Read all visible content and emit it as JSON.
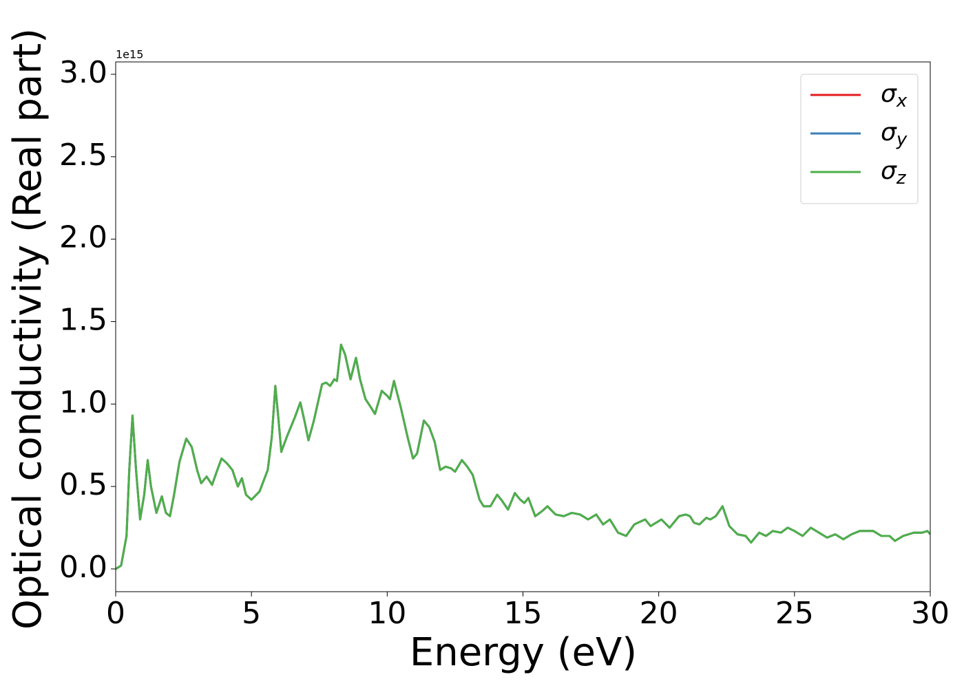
{
  "chart_data": {
    "type": "line",
    "xlabel": "Energy (eV)",
    "ylabel": "Optical conductivity (Real part)",
    "y_offset_label": "1e15",
    "x": [
      0,
      0.2,
      0.4,
      0.5,
      0.62,
      0.75,
      0.9,
      1.05,
      1.18,
      1.3,
      1.5,
      1.7,
      1.85,
      2.0,
      2.15,
      2.35,
      2.6,
      2.8,
      3.0,
      3.15,
      3.35,
      3.55,
      3.7,
      3.9,
      4.1,
      4.3,
      4.5,
      4.65,
      4.8,
      5.0,
      5.3,
      5.6,
      5.75,
      5.88,
      6.0,
      6.1,
      6.3,
      6.6,
      6.8,
      6.95,
      7.1,
      7.3,
      7.6,
      7.75,
      7.9,
      8.05,
      8.15,
      8.3,
      8.45,
      8.65,
      8.85,
      9.0,
      9.2,
      9.4,
      9.55,
      9.8,
      10.0,
      10.1,
      10.25,
      10.5,
      10.75,
      10.95,
      11.1,
      11.35,
      11.55,
      11.75,
      11.95,
      12.15,
      12.35,
      12.5,
      12.75,
      12.95,
      13.15,
      13.4,
      13.55,
      13.8,
      14.05,
      14.2,
      14.45,
      14.7,
      14.9,
      15.05,
      15.2,
      15.45,
      15.7,
      15.9,
      16.2,
      16.5,
      16.8,
      17.1,
      17.4,
      17.7,
      17.95,
      18.2,
      18.5,
      18.8,
      19.1,
      19.5,
      19.7,
      20.1,
      20.4,
      20.75,
      21.0,
      21.15,
      21.3,
      21.5,
      21.75,
      21.9,
      22.1,
      22.35,
      22.6,
      22.9,
      23.2,
      23.4,
      23.7,
      23.95,
      24.2,
      24.5,
      24.75,
      25.0,
      25.3,
      25.6,
      25.9,
      26.2,
      26.5,
      26.8,
      27.1,
      27.4,
      27.7,
      27.9,
      28.2,
      28.5,
      28.7,
      29.0,
      29.4,
      29.7,
      29.9,
      30
    ],
    "series": [
      {
        "name": "σx",
        "color": "#e41a1c",
        "values": [
          0,
          0.02,
          0.2,
          0.6,
          0.93,
          0.6,
          0.3,
          0.45,
          0.66,
          0.5,
          0.34,
          0.44,
          0.34,
          0.32,
          0.45,
          0.65,
          0.79,
          0.74,
          0.6,
          0.52,
          0.56,
          0.51,
          0.58,
          0.67,
          0.64,
          0.6,
          0.5,
          0.55,
          0.45,
          0.42,
          0.47,
          0.6,
          0.8,
          1.11,
          0.9,
          0.71,
          0.8,
          0.92,
          1.01,
          0.9,
          0.78,
          0.9,
          1.12,
          1.13,
          1.11,
          1.15,
          1.14,
          1.36,
          1.3,
          1.15,
          1.28,
          1.15,
          1.03,
          0.98,
          0.94,
          1.08,
          1.05,
          1.03,
          1.14,
          0.98,
          0.8,
          0.67,
          0.7,
          0.9,
          0.86,
          0.77,
          0.6,
          0.62,
          0.61,
          0.59,
          0.66,
          0.62,
          0.57,
          0.42,
          0.38,
          0.38,
          0.45,
          0.42,
          0.36,
          0.46,
          0.42,
          0.4,
          0.43,
          0.32,
          0.35,
          0.38,
          0.33,
          0.32,
          0.34,
          0.33,
          0.3,
          0.33,
          0.27,
          0.3,
          0.22,
          0.2,
          0.27,
          0.3,
          0.26,
          0.3,
          0.25,
          0.32,
          0.33,
          0.32,
          0.28,
          0.27,
          0.31,
          0.3,
          0.32,
          0.38,
          0.26,
          0.21,
          0.2,
          0.16,
          0.22,
          0.2,
          0.23,
          0.22,
          0.25,
          0.23,
          0.2,
          0.25,
          0.22,
          0.19,
          0.21,
          0.18,
          0.21,
          0.23,
          0.23,
          0.23,
          0.2,
          0.2,
          0.17,
          0.2,
          0.22,
          0.22,
          0.23,
          0.21
        ]
      },
      {
        "name": "σy",
        "color": "#377eb8",
        "values": [
          0,
          0.02,
          0.2,
          0.6,
          0.93,
          0.6,
          0.3,
          0.45,
          0.66,
          0.5,
          0.34,
          0.44,
          0.34,
          0.32,
          0.45,
          0.65,
          0.79,
          0.74,
          0.6,
          0.52,
          0.56,
          0.51,
          0.58,
          0.67,
          0.64,
          0.6,
          0.5,
          0.55,
          0.45,
          0.42,
          0.47,
          0.6,
          0.8,
          1.11,
          0.9,
          0.71,
          0.8,
          0.92,
          1.01,
          0.9,
          0.78,
          0.9,
          1.12,
          1.13,
          1.11,
          1.15,
          1.14,
          1.36,
          1.3,
          1.15,
          1.28,
          1.15,
          1.03,
          0.98,
          0.94,
          1.08,
          1.05,
          1.03,
          1.14,
          0.98,
          0.8,
          0.67,
          0.7,
          0.9,
          0.86,
          0.77,
          0.6,
          0.62,
          0.61,
          0.59,
          0.66,
          0.62,
          0.57,
          0.42,
          0.38,
          0.38,
          0.45,
          0.42,
          0.36,
          0.46,
          0.42,
          0.4,
          0.43,
          0.32,
          0.35,
          0.38,
          0.33,
          0.32,
          0.34,
          0.33,
          0.3,
          0.33,
          0.27,
          0.3,
          0.22,
          0.2,
          0.27,
          0.3,
          0.26,
          0.3,
          0.25,
          0.32,
          0.33,
          0.32,
          0.28,
          0.27,
          0.31,
          0.3,
          0.32,
          0.38,
          0.26,
          0.21,
          0.2,
          0.16,
          0.22,
          0.2,
          0.23,
          0.22,
          0.25,
          0.23,
          0.2,
          0.25,
          0.22,
          0.19,
          0.21,
          0.18,
          0.21,
          0.23,
          0.23,
          0.23,
          0.2,
          0.2,
          0.17,
          0.2,
          0.22,
          0.22,
          0.23,
          0.21
        ]
      },
      {
        "name": "σz",
        "color": "#4daf4a",
        "values": [
          0,
          0.02,
          0.2,
          0.6,
          0.93,
          0.6,
          0.3,
          0.45,
          0.66,
          0.5,
          0.34,
          0.44,
          0.34,
          0.32,
          0.45,
          0.65,
          0.79,
          0.74,
          0.6,
          0.52,
          0.56,
          0.51,
          0.58,
          0.67,
          0.64,
          0.6,
          0.5,
          0.55,
          0.45,
          0.42,
          0.47,
          0.6,
          0.8,
          1.11,
          0.9,
          0.71,
          0.8,
          0.92,
          1.01,
          0.9,
          0.78,
          0.9,
          1.12,
          1.13,
          1.11,
          1.15,
          1.14,
          1.36,
          1.3,
          1.15,
          1.28,
          1.15,
          1.03,
          0.98,
          0.94,
          1.08,
          1.05,
          1.03,
          1.14,
          0.98,
          0.8,
          0.67,
          0.7,
          0.9,
          0.86,
          0.77,
          0.6,
          0.62,
          0.61,
          0.59,
          0.66,
          0.62,
          0.57,
          0.42,
          0.38,
          0.38,
          0.45,
          0.42,
          0.36,
          0.46,
          0.42,
          0.4,
          0.43,
          0.32,
          0.35,
          0.38,
          0.33,
          0.32,
          0.34,
          0.33,
          0.3,
          0.33,
          0.27,
          0.3,
          0.22,
          0.2,
          0.27,
          0.3,
          0.26,
          0.3,
          0.25,
          0.32,
          0.33,
          0.32,
          0.28,
          0.27,
          0.31,
          0.3,
          0.32,
          0.38,
          0.26,
          0.21,
          0.2,
          0.16,
          0.22,
          0.2,
          0.23,
          0.22,
          0.25,
          0.23,
          0.2,
          0.25,
          0.22,
          0.19,
          0.21,
          0.18,
          0.21,
          0.23,
          0.23,
          0.23,
          0.2,
          0.2,
          0.17,
          0.2,
          0.22,
          0.22,
          0.23,
          0.21
        ]
      }
    ],
    "xlim": [
      0,
      30
    ],
    "xticks": [
      0,
      5,
      10,
      15,
      20,
      25,
      30
    ],
    "ylim": [
      -0.138,
      3.075
    ],
    "yticks": [
      {
        "value": 0,
        "label": "0.0"
      },
      0.5,
      {
        "value": 1,
        "label": "1.0"
      },
      1.5,
      {
        "value": 2,
        "label": "2.0"
      },
      2.5,
      {
        "value": 3,
        "label": "3.0"
      }
    ],
    "legend": "upper right",
    "grid": false
  }
}
